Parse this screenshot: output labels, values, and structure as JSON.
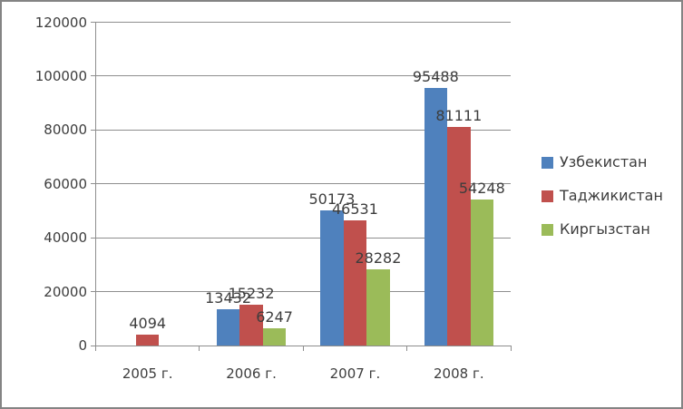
{
  "chart_data": {
    "type": "bar",
    "title": "",
    "xlabel": "",
    "ylabel": "",
    "categories": [
      "2005 г.",
      "2006 г.",
      "2007 г.",
      "2008 г."
    ],
    "series": [
      {
        "name": "Узбекистан",
        "color": "#4f81bd",
        "values": [
          null,
          13432,
          50173,
          95488
        ]
      },
      {
        "name": "Таджикистан",
        "color": "#c0504d",
        "values": [
          4094,
          15232,
          46531,
          81111
        ]
      },
      {
        "name": "Киргызстан",
        "color": "#9bbb59",
        "values": [
          null,
          6247,
          28282,
          54248
        ]
      }
    ],
    "ylim": [
      0,
      120000
    ],
    "y_tick_step": 20000,
    "y_tick_labels": [
      "0",
      "20000",
      "40000",
      "60000",
      "80000",
      "100000",
      "120000"
    ],
    "grid": true,
    "legend_position": "right",
    "data_labels_shown": true
  },
  "colors": {
    "background": "#ffffff",
    "border": "#848484",
    "gridline": "#8e8e8e",
    "axis": "#8e8e8e",
    "text": "#3d3d3d"
  }
}
